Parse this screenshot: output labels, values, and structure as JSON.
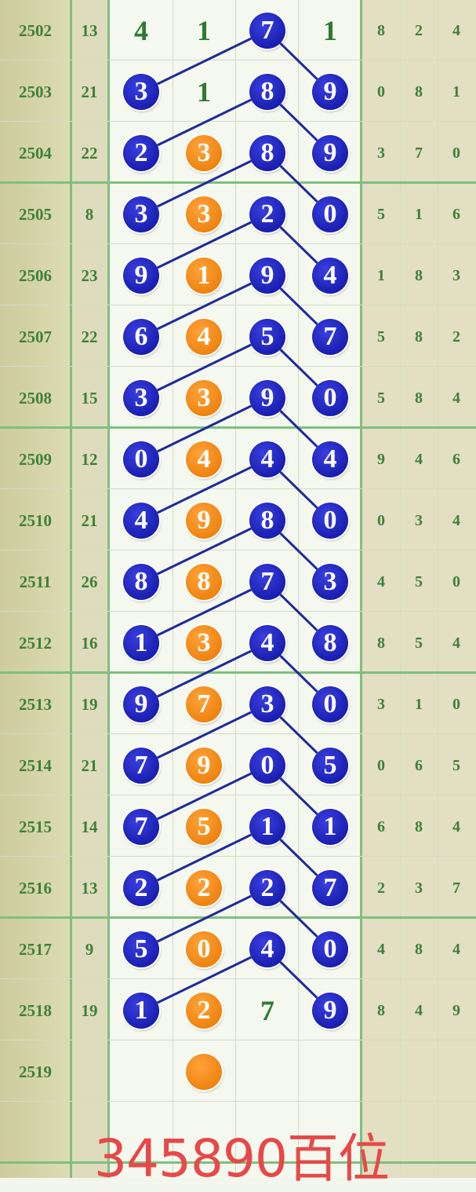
{
  "colors": {
    "blue_ball": "#1a1fb0",
    "orange_ball": "#ee8410",
    "text_green": "#3f7f3a",
    "caption": "#e84848",
    "line": "#1e2a9a"
  },
  "rows": [
    {
      "period": "2502",
      "sum": "13",
      "digits": [
        {
          "v": "4",
          "style": "plain"
        },
        {
          "v": "1",
          "style": "plain"
        },
        {
          "v": "7",
          "style": "blue"
        },
        {
          "v": "1",
          "style": "plain"
        }
      ],
      "tail": [
        "8",
        "2",
        "4"
      ]
    },
    {
      "period": "2503",
      "sum": "21",
      "digits": [
        {
          "v": "3",
          "style": "blue"
        },
        {
          "v": "1",
          "style": "plain"
        },
        {
          "v": "8",
          "style": "blue"
        },
        {
          "v": "9",
          "style": "blue"
        }
      ],
      "tail": [
        "0",
        "8",
        "1"
      ]
    },
    {
      "period": "2504",
      "sum": "22",
      "digits": [
        {
          "v": "2",
          "style": "blue"
        },
        {
          "v": "3",
          "style": "orange"
        },
        {
          "v": "8",
          "style": "blue"
        },
        {
          "v": "9",
          "style": "blue"
        }
      ],
      "tail": [
        "3",
        "7",
        "0"
      ]
    },
    {
      "period": "2505",
      "sum": "8",
      "digits": [
        {
          "v": "3",
          "style": "blue"
        },
        {
          "v": "3",
          "style": "orange"
        },
        {
          "v": "2",
          "style": "blue"
        },
        {
          "v": "0",
          "style": "blue"
        }
      ],
      "tail": [
        "5",
        "1",
        "6"
      ]
    },
    {
      "period": "2506",
      "sum": "23",
      "digits": [
        {
          "v": "9",
          "style": "blue"
        },
        {
          "v": "1",
          "style": "orange"
        },
        {
          "v": "9",
          "style": "blue"
        },
        {
          "v": "4",
          "style": "blue"
        }
      ],
      "tail": [
        "1",
        "8",
        "3"
      ]
    },
    {
      "period": "2507",
      "sum": "22",
      "digits": [
        {
          "v": "6",
          "style": "blue"
        },
        {
          "v": "4",
          "style": "orange"
        },
        {
          "v": "5",
          "style": "blue"
        },
        {
          "v": "7",
          "style": "blue"
        }
      ],
      "tail": [
        "5",
        "8",
        "2"
      ]
    },
    {
      "period": "2508",
      "sum": "15",
      "digits": [
        {
          "v": "3",
          "style": "blue"
        },
        {
          "v": "3",
          "style": "orange"
        },
        {
          "v": "9",
          "style": "blue"
        },
        {
          "v": "0",
          "style": "blue"
        }
      ],
      "tail": [
        "5",
        "8",
        "4"
      ]
    },
    {
      "period": "2509",
      "sum": "12",
      "digits": [
        {
          "v": "0",
          "style": "blue"
        },
        {
          "v": "4",
          "style": "orange"
        },
        {
          "v": "4",
          "style": "blue"
        },
        {
          "v": "4",
          "style": "blue"
        }
      ],
      "tail": [
        "9",
        "4",
        "6"
      ]
    },
    {
      "period": "2510",
      "sum": "21",
      "digits": [
        {
          "v": "4",
          "style": "blue"
        },
        {
          "v": "9",
          "style": "orange"
        },
        {
          "v": "8",
          "style": "blue"
        },
        {
          "v": "0",
          "style": "blue"
        }
      ],
      "tail": [
        "0",
        "3",
        "4"
      ]
    },
    {
      "period": "2511",
      "sum": "26",
      "digits": [
        {
          "v": "8",
          "style": "blue"
        },
        {
          "v": "8",
          "style": "orange"
        },
        {
          "v": "7",
          "style": "blue"
        },
        {
          "v": "3",
          "style": "blue"
        }
      ],
      "tail": [
        "4",
        "5",
        "0"
      ]
    },
    {
      "period": "2512",
      "sum": "16",
      "digits": [
        {
          "v": "1",
          "style": "blue"
        },
        {
          "v": "3",
          "style": "orange"
        },
        {
          "v": "4",
          "style": "blue"
        },
        {
          "v": "8",
          "style": "blue"
        }
      ],
      "tail": [
        "8",
        "5",
        "4"
      ]
    },
    {
      "period": "2513",
      "sum": "19",
      "digits": [
        {
          "v": "9",
          "style": "blue"
        },
        {
          "v": "7",
          "style": "orange"
        },
        {
          "v": "3",
          "style": "blue"
        },
        {
          "v": "0",
          "style": "blue"
        }
      ],
      "tail": [
        "3",
        "1",
        "0"
      ]
    },
    {
      "period": "2514",
      "sum": "21",
      "digits": [
        {
          "v": "7",
          "style": "blue"
        },
        {
          "v": "9",
          "style": "orange"
        },
        {
          "v": "0",
          "style": "blue"
        },
        {
          "v": "5",
          "style": "blue"
        }
      ],
      "tail": [
        "0",
        "6",
        "5"
      ]
    },
    {
      "period": "2515",
      "sum": "14",
      "digits": [
        {
          "v": "7",
          "style": "blue"
        },
        {
          "v": "5",
          "style": "orange"
        },
        {
          "v": "1",
          "style": "blue"
        },
        {
          "v": "1",
          "style": "blue"
        }
      ],
      "tail": [
        "6",
        "8",
        "4"
      ]
    },
    {
      "period": "2516",
      "sum": "13",
      "digits": [
        {
          "v": "2",
          "style": "blue"
        },
        {
          "v": "2",
          "style": "orange"
        },
        {
          "v": "2",
          "style": "blue"
        },
        {
          "v": "7",
          "style": "blue"
        }
      ],
      "tail": [
        "2",
        "3",
        "7"
      ]
    },
    {
      "period": "2517",
      "sum": "9",
      "digits": [
        {
          "v": "5",
          "style": "blue"
        },
        {
          "v": "0",
          "style": "orange"
        },
        {
          "v": "4",
          "style": "blue"
        },
        {
          "v": "0",
          "style": "blue"
        }
      ],
      "tail": [
        "4",
        "8",
        "4"
      ]
    },
    {
      "period": "2518",
      "sum": "19",
      "digits": [
        {
          "v": "1",
          "style": "blue"
        },
        {
          "v": "2",
          "style": "orange"
        },
        {
          "v": "7",
          "style": "plain"
        },
        {
          "v": "9",
          "style": "blue"
        }
      ],
      "tail": [
        "8",
        "4",
        "9"
      ]
    },
    {
      "period": "2519",
      "sum": "",
      "digits": [
        {
          "v": "",
          "style": "none"
        },
        {
          "v": "",
          "style": "orange"
        },
        {
          "v": "",
          "style": "none"
        },
        {
          "v": "",
          "style": "none"
        }
      ],
      "tail": [
        "",
        "",
        ""
      ]
    }
  ],
  "caption": "345890百位"
}
